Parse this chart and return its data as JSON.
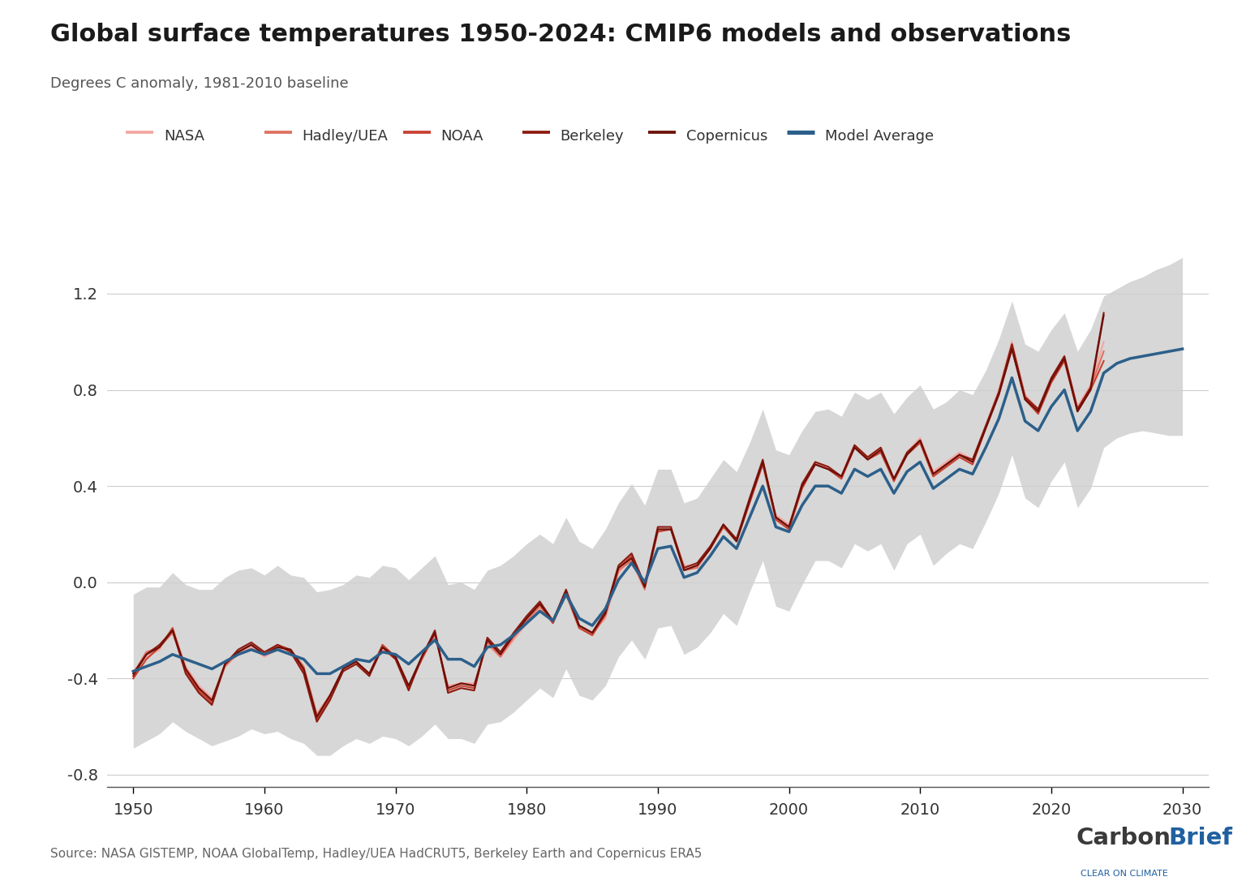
{
  "title": "Global surface temperatures 1950-2024: CMIP6 models and observations",
  "subtitle": "Degrees C anomaly, 1981-2010 baseline",
  "source_text": "Source: NASA GISTEMP, NOAA GlobalTemp, Hadley/UEA HadCRUT5, Berkeley Earth and Copernicus ERA5",
  "xlim": [
    1948,
    2032
  ],
  "ylim": [
    -0.85,
    1.38
  ],
  "yticks": [
    -0.8,
    -0.4,
    0.0,
    0.4,
    0.8,
    1.2
  ],
  "xticks": [
    1950,
    1960,
    1970,
    1980,
    1990,
    2000,
    2010,
    2020,
    2030
  ],
  "obs_colors": {
    "NASA": "#f4a6a0",
    "Hadley_UEA": "#e07060",
    "NOAA": "#c84030",
    "Berkeley": "#8b1a10",
    "Copernicus": "#6b1008"
  },
  "obs_labels": [
    "NASA",
    "Hadley/UEA",
    "NOAA",
    "Berkeley",
    "Copernicus"
  ],
  "model_avg_color": "#2c5f8a",
  "model_shade_color": "#d0d0d0",
  "background_color": "#ffffff",
  "years_obs": [
    1950,
    1951,
    1952,
    1953,
    1954,
    1955,
    1956,
    1957,
    1958,
    1959,
    1960,
    1961,
    1962,
    1963,
    1964,
    1965,
    1966,
    1967,
    1968,
    1969,
    1970,
    1971,
    1972,
    1973,
    1974,
    1975,
    1976,
    1977,
    1978,
    1979,
    1980,
    1981,
    1982,
    1983,
    1984,
    1985,
    1986,
    1987,
    1988,
    1989,
    1990,
    1991,
    1992,
    1993,
    1994,
    1995,
    1996,
    1997,
    1998,
    1999,
    2000,
    2001,
    2002,
    2003,
    2004,
    2005,
    2006,
    2007,
    2008,
    2009,
    2010,
    2011,
    2012,
    2013,
    2014,
    2015,
    2016,
    2017,
    2018,
    2019,
    2020,
    2021,
    2022,
    2023,
    2024
  ],
  "NASA": [
    -0.37,
    -0.31,
    -0.28,
    -0.19,
    -0.35,
    -0.43,
    -0.48,
    -0.35,
    -0.3,
    -0.27,
    -0.31,
    -0.28,
    -0.28,
    -0.36,
    -0.55,
    -0.47,
    -0.37,
    -0.34,
    -0.38,
    -0.28,
    -0.32,
    -0.43,
    -0.32,
    -0.22,
    -0.43,
    -0.42,
    -0.42,
    -0.26,
    -0.31,
    -0.24,
    -0.17,
    -0.11,
    -0.16,
    -0.04,
    -0.18,
    -0.21,
    -0.15,
    0.04,
    0.1,
    -0.02,
    0.22,
    0.22,
    0.07,
    0.07,
    0.14,
    0.23,
    0.18,
    0.33,
    0.5,
    0.28,
    0.24,
    0.4,
    0.5,
    0.48,
    0.44,
    0.57,
    0.52,
    0.56,
    0.43,
    0.54,
    0.6,
    0.46,
    0.5,
    0.54,
    0.51,
    0.65,
    0.8,
    1.0,
    0.78,
    0.72,
    0.84,
    0.94,
    0.73,
    0.82,
    1.0
  ],
  "Hadley_UEA": [
    -0.38,
    -0.29,
    -0.27,
    -0.21,
    -0.36,
    -0.44,
    -0.5,
    -0.35,
    -0.29,
    -0.26,
    -0.3,
    -0.27,
    -0.28,
    -0.35,
    -0.55,
    -0.47,
    -0.36,
    -0.33,
    -0.38,
    -0.27,
    -0.31,
    -0.43,
    -0.32,
    -0.22,
    -0.44,
    -0.42,
    -0.43,
    -0.25,
    -0.31,
    -0.23,
    -0.16,
    -0.1,
    -0.17,
    -0.05,
    -0.19,
    -0.22,
    -0.14,
    0.05,
    0.09,
    -0.03,
    0.22,
    0.22,
    0.05,
    0.06,
    0.14,
    0.24,
    0.17,
    0.34,
    0.5,
    0.27,
    0.23,
    0.4,
    0.49,
    0.47,
    0.44,
    0.57,
    0.52,
    0.55,
    0.43,
    0.53,
    0.59,
    0.45,
    0.49,
    0.53,
    0.5,
    0.64,
    0.79,
    0.98,
    0.77,
    0.71,
    0.84,
    0.93,
    0.72,
    0.81,
    0.96
  ],
  "NOAA": [
    -0.4,
    -0.32,
    -0.27,
    -0.19,
    -0.37,
    -0.45,
    -0.5,
    -0.34,
    -0.29,
    -0.26,
    -0.3,
    -0.26,
    -0.28,
    -0.37,
    -0.57,
    -0.48,
    -0.36,
    -0.33,
    -0.38,
    -0.26,
    -0.31,
    -0.44,
    -0.32,
    -0.21,
    -0.45,
    -0.43,
    -0.44,
    -0.24,
    -0.3,
    -0.22,
    -0.15,
    -0.09,
    -0.17,
    -0.04,
    -0.19,
    -0.22,
    -0.13,
    0.06,
    0.11,
    -0.02,
    0.21,
    0.22,
    0.05,
    0.07,
    0.14,
    0.23,
    0.17,
    0.33,
    0.49,
    0.26,
    0.22,
    0.39,
    0.49,
    0.47,
    0.43,
    0.56,
    0.51,
    0.54,
    0.42,
    0.53,
    0.58,
    0.44,
    0.48,
    0.52,
    0.49,
    0.64,
    0.78,
    0.97,
    0.76,
    0.7,
    0.83,
    0.92,
    0.71,
    0.8,
    0.92
  ],
  "Berkeley": [
    -0.39,
    -0.3,
    -0.26,
    -0.2,
    -0.38,
    -0.46,
    -0.51,
    -0.34,
    -0.28,
    -0.25,
    -0.29,
    -0.26,
    -0.29,
    -0.38,
    -0.58,
    -0.49,
    -0.37,
    -0.34,
    -0.39,
    -0.27,
    -0.32,
    -0.45,
    -0.31,
    -0.2,
    -0.46,
    -0.44,
    -0.45,
    -0.23,
    -0.29,
    -0.21,
    -0.14,
    -0.08,
    -0.16,
    -0.03,
    -0.18,
    -0.21,
    -0.12,
    0.07,
    0.12,
    -0.01,
    0.23,
    0.23,
    0.06,
    0.08,
    0.15,
    0.24,
    0.18,
    0.35,
    0.51,
    0.27,
    0.23,
    0.41,
    0.5,
    0.48,
    0.44,
    0.57,
    0.52,
    0.56,
    0.43,
    0.54,
    0.59,
    0.45,
    0.49,
    0.53,
    0.51,
    0.65,
    0.79,
    0.99,
    0.77,
    0.72,
    0.85,
    0.94,
    0.72,
    0.81,
    1.12
  ],
  "Copernicus": [
    -0.38,
    -0.3,
    -0.27,
    -0.2,
    -0.36,
    -0.44,
    -0.49,
    -0.34,
    -0.29,
    -0.26,
    -0.3,
    -0.27,
    -0.28,
    -0.36,
    -0.56,
    -0.47,
    -0.36,
    -0.33,
    -0.38,
    -0.27,
    -0.31,
    -0.43,
    -0.31,
    -0.21,
    -0.44,
    -0.42,
    -0.43,
    -0.24,
    -0.3,
    -0.22,
    -0.15,
    -0.09,
    -0.16,
    -0.04,
    -0.18,
    -0.21,
    -0.13,
    0.06,
    0.1,
    -0.02,
    0.22,
    0.22,
    0.05,
    0.07,
    0.14,
    0.24,
    0.17,
    0.34,
    0.5,
    0.27,
    0.23,
    0.4,
    0.49,
    0.47,
    0.44,
    0.56,
    0.51,
    0.55,
    0.43,
    0.53,
    0.59,
    0.45,
    0.49,
    0.53,
    0.5,
    0.64,
    0.78,
    0.97,
    0.76,
    0.71,
    0.84,
    0.93,
    0.71,
    0.8,
    1.11
  ],
  "years_model": [
    1950,
    1951,
    1952,
    1953,
    1954,
    1955,
    1956,
    1957,
    1958,
    1959,
    1960,
    1961,
    1962,
    1963,
    1964,
    1965,
    1966,
    1967,
    1968,
    1969,
    1970,
    1971,
    1972,
    1973,
    1974,
    1975,
    1976,
    1977,
    1978,
    1979,
    1980,
    1981,
    1982,
    1983,
    1984,
    1985,
    1986,
    1987,
    1988,
    1989,
    1990,
    1991,
    1992,
    1993,
    1994,
    1995,
    1996,
    1997,
    1998,
    1999,
    2000,
    2001,
    2002,
    2003,
    2004,
    2005,
    2006,
    2007,
    2008,
    2009,
    2010,
    2011,
    2012,
    2013,
    2014,
    2015,
    2016,
    2017,
    2018,
    2019,
    2020,
    2021,
    2022,
    2023,
    2024,
    2025,
    2026,
    2027,
    2028,
    2029,
    2030
  ],
  "model_avg": [
    -0.37,
    -0.35,
    -0.33,
    -0.3,
    -0.32,
    -0.34,
    -0.36,
    -0.33,
    -0.3,
    -0.28,
    -0.3,
    -0.28,
    -0.3,
    -0.32,
    -0.38,
    -0.38,
    -0.35,
    -0.32,
    -0.33,
    -0.29,
    -0.3,
    -0.34,
    -0.29,
    -0.24,
    -0.32,
    -0.32,
    -0.35,
    -0.27,
    -0.26,
    -0.22,
    -0.17,
    -0.12,
    -0.16,
    -0.05,
    -0.15,
    -0.18,
    -0.11,
    0.01,
    0.08,
    0.0,
    0.14,
    0.15,
    0.02,
    0.04,
    0.11,
    0.19,
    0.14,
    0.27,
    0.4,
    0.23,
    0.21,
    0.32,
    0.4,
    0.4,
    0.37,
    0.47,
    0.44,
    0.47,
    0.37,
    0.46,
    0.5,
    0.39,
    0.43,
    0.47,
    0.45,
    0.56,
    0.68,
    0.85,
    0.67,
    0.63,
    0.73,
    0.8,
    0.63,
    0.71,
    0.87,
    0.91,
    0.93,
    0.94,
    0.95,
    0.96,
    0.97
  ],
  "model_upper": [
    -0.05,
    -0.02,
    -0.02,
    0.04,
    -0.01,
    -0.03,
    -0.03,
    0.02,
    0.05,
    0.06,
    0.03,
    0.07,
    0.03,
    0.02,
    -0.04,
    -0.03,
    -0.01,
    0.03,
    0.02,
    0.07,
    0.06,
    0.01,
    0.06,
    0.11,
    -0.01,
    0.0,
    -0.03,
    0.05,
    0.07,
    0.11,
    0.16,
    0.2,
    0.16,
    0.27,
    0.17,
    0.14,
    0.22,
    0.33,
    0.41,
    0.32,
    0.47,
    0.47,
    0.33,
    0.35,
    0.43,
    0.51,
    0.46,
    0.58,
    0.72,
    0.55,
    0.53,
    0.63,
    0.71,
    0.72,
    0.69,
    0.79,
    0.76,
    0.79,
    0.7,
    0.77,
    0.82,
    0.72,
    0.75,
    0.8,
    0.78,
    0.88,
    1.01,
    1.17,
    0.99,
    0.96,
    1.05,
    1.12,
    0.96,
    1.05,
    1.19,
    1.22,
    1.25,
    1.27,
    1.3,
    1.32,
    1.35
  ],
  "model_lower": [
    -0.69,
    -0.66,
    -0.63,
    -0.58,
    -0.62,
    -0.65,
    -0.68,
    -0.66,
    -0.64,
    -0.61,
    -0.63,
    -0.62,
    -0.65,
    -0.67,
    -0.72,
    -0.72,
    -0.68,
    -0.65,
    -0.67,
    -0.64,
    -0.65,
    -0.68,
    -0.64,
    -0.59,
    -0.65,
    -0.65,
    -0.67,
    -0.59,
    -0.58,
    -0.54,
    -0.49,
    -0.44,
    -0.48,
    -0.36,
    -0.47,
    -0.49,
    -0.43,
    -0.31,
    -0.24,
    -0.32,
    -0.19,
    -0.18,
    -0.3,
    -0.27,
    -0.21,
    -0.13,
    -0.18,
    -0.04,
    0.09,
    -0.1,
    -0.12,
    -0.01,
    0.09,
    0.09,
    0.06,
    0.16,
    0.13,
    0.16,
    0.05,
    0.16,
    0.2,
    0.07,
    0.12,
    0.16,
    0.14,
    0.25,
    0.37,
    0.53,
    0.35,
    0.31,
    0.42,
    0.5,
    0.31,
    0.39,
    0.56,
    0.6,
    0.62,
    0.63,
    0.62,
    0.61,
    0.61
  ]
}
